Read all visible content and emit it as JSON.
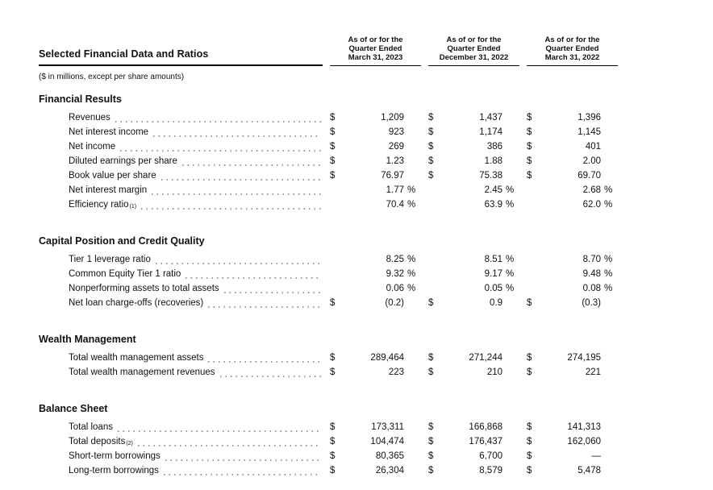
{
  "page": {
    "background": "#ffffff",
    "text_color": "#111111",
    "rule_color": "#000000",
    "leader_dot_color": "#999999"
  },
  "table": {
    "title": "Selected Financial Data and Ratios",
    "note": "($ in millions, except per share amounts)",
    "columns": [
      {
        "lines": [
          "As of or for the",
          "Quarter Ended",
          "March 31, 2023"
        ]
      },
      {
        "lines": [
          "As of or for the",
          "Quarter Ended",
          "December 31, 2022"
        ]
      },
      {
        "lines": [
          "As of or for the",
          "Quarter Ended",
          "March 31, 2022"
        ]
      }
    ],
    "sections": [
      {
        "heading": "Financial Results",
        "rows": [
          {
            "label": "Revenues",
            "cells": [
              {
                "cur": "$",
                "val": "1,209",
                "sym": ""
              },
              {
                "cur": "$",
                "val": "1,437",
                "sym": ""
              },
              {
                "cur": "$",
                "val": "1,396",
                "sym": ""
              }
            ]
          },
          {
            "label": "Net interest income",
            "cells": [
              {
                "cur": "$",
                "val": "923",
                "sym": ""
              },
              {
                "cur": "$",
                "val": "1,174",
                "sym": ""
              },
              {
                "cur": "$",
                "val": "1,145",
                "sym": ""
              }
            ]
          },
          {
            "label": "Net income",
            "cells": [
              {
                "cur": "$",
                "val": "269",
                "sym": ""
              },
              {
                "cur": "$",
                "val": "386",
                "sym": ""
              },
              {
                "cur": "$",
                "val": "401",
                "sym": ""
              }
            ]
          },
          {
            "label": "Diluted earnings per share",
            "cells": [
              {
                "cur": "$",
                "val": "1.23",
                "sym": ""
              },
              {
                "cur": "$",
                "val": "1.88",
                "sym": ""
              },
              {
                "cur": "$",
                "val": "2.00",
                "sym": ""
              }
            ]
          },
          {
            "label": "Book value per share",
            "cells": [
              {
                "cur": "$",
                "val": "76.97",
                "sym": ""
              },
              {
                "cur": "$",
                "val": "75.38",
                "sym": ""
              },
              {
                "cur": "$",
                "val": "69.70",
                "sym": ""
              }
            ]
          },
          {
            "label": "Net interest margin",
            "cells": [
              {
                "cur": "",
                "val": "1.77",
                "sym": "%"
              },
              {
                "cur": "",
                "val": "2.45",
                "sym": "%"
              },
              {
                "cur": "",
                "val": "2.68",
                "sym": "%"
              }
            ]
          },
          {
            "label": "Efficiency ratio",
            "sup": "(1)",
            "cells": [
              {
                "cur": "",
                "val": "70.4",
                "sym": "%"
              },
              {
                "cur": "",
                "val": "63.9",
                "sym": "%"
              },
              {
                "cur": "",
                "val": "62.0",
                "sym": "%"
              }
            ]
          }
        ]
      },
      {
        "heading": "Capital Position and Credit Quality",
        "rows": [
          {
            "label": "Tier 1 leverage ratio",
            "cells": [
              {
                "cur": "",
                "val": "8.25",
                "sym": "%"
              },
              {
                "cur": "",
                "val": "8.51",
                "sym": "%"
              },
              {
                "cur": "",
                "val": "8.70",
                "sym": "%"
              }
            ]
          },
          {
            "label": "Common Equity Tier 1 ratio",
            "cells": [
              {
                "cur": "",
                "val": "9.32",
                "sym": "%"
              },
              {
                "cur": "",
                "val": "9.17",
                "sym": "%"
              },
              {
                "cur": "",
                "val": "9.48",
                "sym": "%"
              }
            ]
          },
          {
            "label": "Nonperforming assets to total assets",
            "cells": [
              {
                "cur": "",
                "val": "0.06",
                "sym": "%"
              },
              {
                "cur": "",
                "val": "0.05",
                "sym": "%"
              },
              {
                "cur": "",
                "val": "0.08",
                "sym": "%"
              }
            ]
          },
          {
            "label": "Net loan charge-offs (recoveries)",
            "cells": [
              {
                "cur": "$",
                "val": "(0.2)",
                "sym": ""
              },
              {
                "cur": "$",
                "val": "0.9",
                "sym": ""
              },
              {
                "cur": "$",
                "val": "(0.3)",
                "sym": ""
              }
            ]
          }
        ]
      },
      {
        "heading": "Wealth Management",
        "rows": [
          {
            "label": "Total wealth management assets",
            "cells": [
              {
                "cur": "$",
                "val": "289,464",
                "sym": ""
              },
              {
                "cur": "$",
                "val": "271,244",
                "sym": ""
              },
              {
                "cur": "$",
                "val": "274,195",
                "sym": ""
              }
            ]
          },
          {
            "label": "Total wealth management revenues",
            "cells": [
              {
                "cur": "$",
                "val": "223",
                "sym": ""
              },
              {
                "cur": "$",
                "val": "210",
                "sym": ""
              },
              {
                "cur": "$",
                "val": "221",
                "sym": ""
              }
            ]
          }
        ]
      },
      {
        "heading": "Balance Sheet",
        "rows": [
          {
            "label": "Total loans",
            "cells": [
              {
                "cur": "$",
                "val": "173,311",
                "sym": ""
              },
              {
                "cur": "$",
                "val": "166,868",
                "sym": ""
              },
              {
                "cur": "$",
                "val": "141,313",
                "sym": ""
              }
            ]
          },
          {
            "label": "Total deposits",
            "sup": "(2)",
            "cells": [
              {
                "cur": "$",
                "val": "104,474",
                "sym": ""
              },
              {
                "cur": "$",
                "val": "176,437",
                "sym": ""
              },
              {
                "cur": "$",
                "val": "162,060",
                "sym": ""
              }
            ]
          },
          {
            "label": "Short-term borrowings",
            "cells": [
              {
                "cur": "$",
                "val": "80,365",
                "sym": ""
              },
              {
                "cur": "$",
                "val": "6,700",
                "sym": ""
              },
              {
                "cur": "$",
                "val": "—",
                "sym": ""
              }
            ]
          },
          {
            "label": "Long-term borrowings",
            "cells": [
              {
                "cur": "$",
                "val": "26,304",
                "sym": ""
              },
              {
                "cur": "$",
                "val": "8,579",
                "sym": ""
              },
              {
                "cur": "$",
                "val": "5,478",
                "sym": ""
              }
            ]
          }
        ]
      }
    ]
  }
}
